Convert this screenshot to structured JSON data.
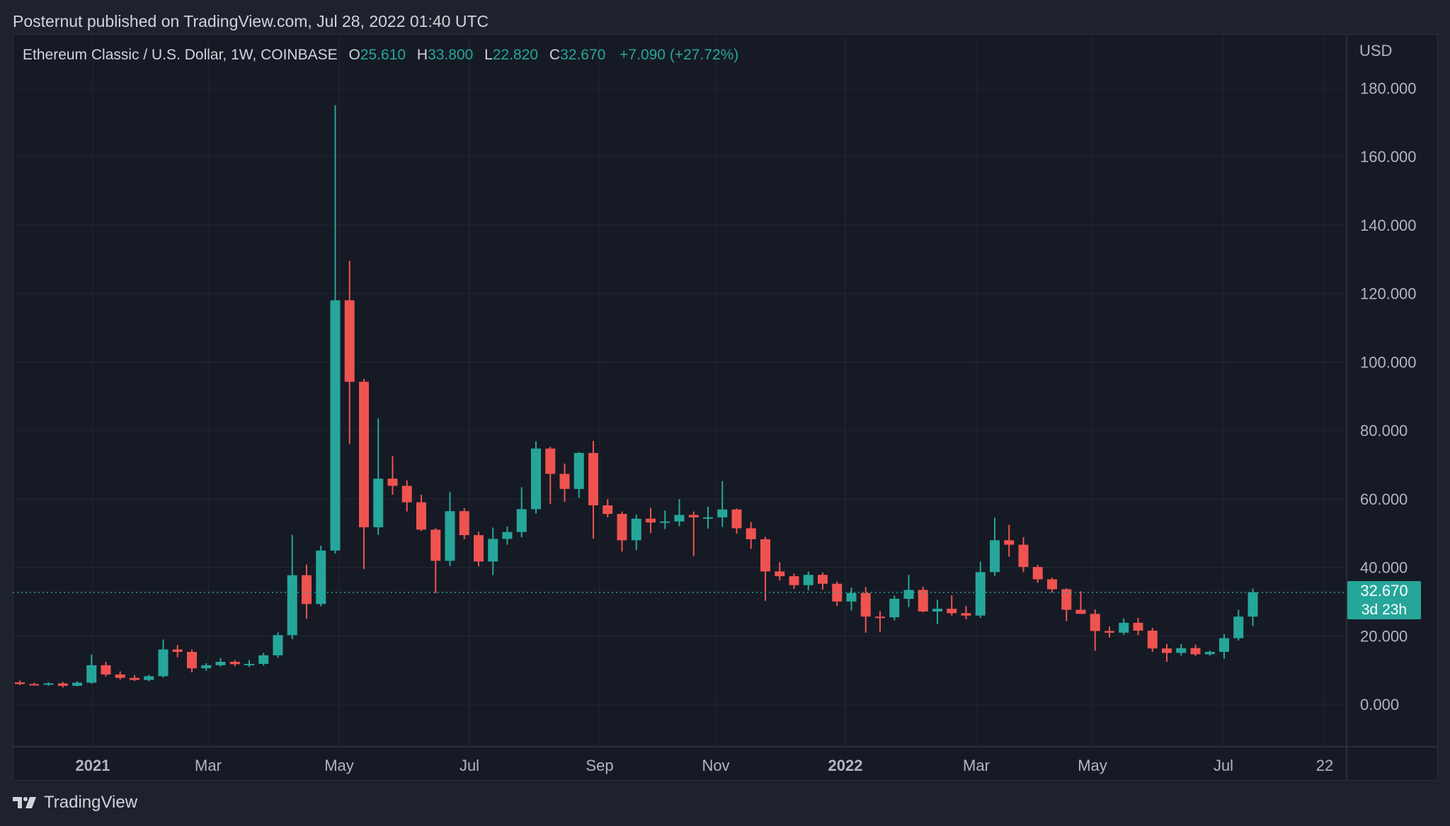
{
  "header": {
    "published": "Posternut published on TradingView.com, Jul 28, 2022 01:40 UTC"
  },
  "legend": {
    "symbol": "Ethereum Classic / U.S. Dollar, 1W, COINBASE",
    "o_label": "O",
    "o_value": "25.610",
    "h_label": "H",
    "h_value": "33.800",
    "l_label": "L",
    "l_value": "22.820",
    "c_label": "C",
    "c_value": "32.670",
    "change": "+7.090 (+27.72%)"
  },
  "price_axis": {
    "currency": "USD",
    "ticks": [
      "0.000",
      "20.000",
      "40.000",
      "60.000",
      "80.000",
      "100.000",
      "120.000",
      "140.000",
      "160.000",
      "180.000"
    ]
  },
  "last_price": {
    "value": "32.670",
    "countdown": "3d 23h"
  },
  "time_axis": {
    "ticks": [
      "2021",
      "Mar",
      "May",
      "Jul",
      "Sep",
      "Nov",
      "2022",
      "Mar",
      "May",
      "Jul",
      "22"
    ]
  },
  "footer": {
    "brand": "TradingView"
  },
  "colors": {
    "up": "#26a69a",
    "down": "#ef5350",
    "background": "#161a25",
    "grid": "#232733",
    "axis_text": "#b2b5be",
    "price_line": "#26a69a"
  },
  "chart_data": {
    "type": "candlestick",
    "title": "Ethereum Classic / U.S. Dollar, 1W, COINBASE",
    "ylabel": "USD",
    "ylim": [
      -12,
      190
    ],
    "grid": true,
    "candles": [
      {
        "o": 6.4,
        "h": 6.9,
        "l": 5.6,
        "c": 5.9
      },
      {
        "o": 5.9,
        "h": 6.3,
        "l": 5.5,
        "c": 5.8
      },
      {
        "o": 5.8,
        "h": 6.4,
        "l": 5.4,
        "c": 6.1
      },
      {
        "o": 6.1,
        "h": 6.5,
        "l": 4.9,
        "c": 5.4
      },
      {
        "o": 5.4,
        "h": 6.7,
        "l": 5.2,
        "c": 6.3
      },
      {
        "o": 6.3,
        "h": 14.5,
        "l": 6.0,
        "c": 11.4
      },
      {
        "o": 11.4,
        "h": 12.4,
        "l": 8.1,
        "c": 8.7
      },
      {
        "o": 8.7,
        "h": 9.6,
        "l": 7.2,
        "c": 7.7
      },
      {
        "o": 7.7,
        "h": 8.5,
        "l": 6.8,
        "c": 7.1
      },
      {
        "o": 7.1,
        "h": 8.6,
        "l": 6.7,
        "c": 8.2
      },
      {
        "o": 8.2,
        "h": 18.9,
        "l": 7.8,
        "c": 16.0
      },
      {
        "o": 16.0,
        "h": 17.3,
        "l": 13.7,
        "c": 15.3
      },
      {
        "o": 15.3,
        "h": 16.0,
        "l": 9.3,
        "c": 10.5
      },
      {
        "o": 10.5,
        "h": 12.0,
        "l": 9.8,
        "c": 11.4
      },
      {
        "o": 11.4,
        "h": 13.5,
        "l": 11.0,
        "c": 12.4
      },
      {
        "o": 12.4,
        "h": 12.9,
        "l": 11.1,
        "c": 11.7
      },
      {
        "o": 11.7,
        "h": 12.9,
        "l": 10.9,
        "c": 11.8
      },
      {
        "o": 11.8,
        "h": 15.0,
        "l": 11.3,
        "c": 14.3
      },
      {
        "o": 14.3,
        "h": 21.0,
        "l": 13.6,
        "c": 20.2
      },
      {
        "o": 20.2,
        "h": 49.5,
        "l": 19.0,
        "c": 37.7
      },
      {
        "o": 37.7,
        "h": 40.8,
        "l": 25.0,
        "c": 29.3
      },
      {
        "o": 29.3,
        "h": 46.3,
        "l": 28.6,
        "c": 44.9
      },
      {
        "o": 44.9,
        "h": 175.0,
        "l": 44.0,
        "c": 118.0
      },
      {
        "o": 118.0,
        "h": 129.5,
        "l": 76.0,
        "c": 94.2
      },
      {
        "o": 94.2,
        "h": 95.0,
        "l": 39.5,
        "c": 51.7
      },
      {
        "o": 51.7,
        "h": 83.5,
        "l": 49.5,
        "c": 65.9
      },
      {
        "o": 65.9,
        "h": 72.5,
        "l": 61.2,
        "c": 63.8
      },
      {
        "o": 63.8,
        "h": 65.4,
        "l": 56.3,
        "c": 59.0
      },
      {
        "o": 59.0,
        "h": 61.2,
        "l": 50.6,
        "c": 51.0
      },
      {
        "o": 51.0,
        "h": 51.4,
        "l": 32.4,
        "c": 41.9
      },
      {
        "o": 41.9,
        "h": 62.0,
        "l": 40.4,
        "c": 56.4
      },
      {
        "o": 56.4,
        "h": 57.3,
        "l": 48.2,
        "c": 49.4
      },
      {
        "o": 49.4,
        "h": 50.4,
        "l": 40.3,
        "c": 41.7
      },
      {
        "o": 41.7,
        "h": 51.6,
        "l": 37.7,
        "c": 48.3
      },
      {
        "o": 48.3,
        "h": 51.9,
        "l": 46.6,
        "c": 50.3
      },
      {
        "o": 50.3,
        "h": 63.4,
        "l": 48.8,
        "c": 57.0
      },
      {
        "o": 57.0,
        "h": 76.8,
        "l": 55.7,
        "c": 74.7
      },
      {
        "o": 74.7,
        "h": 75.2,
        "l": 58.5,
        "c": 67.3
      },
      {
        "o": 67.3,
        "h": 70.3,
        "l": 59.1,
        "c": 62.9
      },
      {
        "o": 62.9,
        "h": 73.7,
        "l": 60.3,
        "c": 73.4
      },
      {
        "o": 73.4,
        "h": 76.9,
        "l": 48.4,
        "c": 58.1
      },
      {
        "o": 58.1,
        "h": 59.9,
        "l": 54.6,
        "c": 55.6
      },
      {
        "o": 55.6,
        "h": 56.3,
        "l": 44.6,
        "c": 47.9
      },
      {
        "o": 47.9,
        "h": 55.4,
        "l": 45.0,
        "c": 54.2
      },
      {
        "o": 54.2,
        "h": 57.4,
        "l": 50.0,
        "c": 53.1
      },
      {
        "o": 53.1,
        "h": 56.6,
        "l": 51.2,
        "c": 53.4
      },
      {
        "o": 53.4,
        "h": 59.9,
        "l": 52.0,
        "c": 55.3
      },
      {
        "o": 55.3,
        "h": 56.3,
        "l": 43.3,
        "c": 54.6
      },
      {
        "o": 54.6,
        "h": 57.7,
        "l": 51.3,
        "c": 54.6
      },
      {
        "o": 54.6,
        "h": 65.2,
        "l": 51.8,
        "c": 56.9
      },
      {
        "o": 56.9,
        "h": 57.2,
        "l": 49.8,
        "c": 51.4
      },
      {
        "o": 51.4,
        "h": 53.2,
        "l": 45.4,
        "c": 48.2
      },
      {
        "o": 48.2,
        "h": 48.9,
        "l": 30.2,
        "c": 38.8
      },
      {
        "o": 38.8,
        "h": 41.5,
        "l": 36.2,
        "c": 37.4
      },
      {
        "o": 37.4,
        "h": 38.2,
        "l": 33.7,
        "c": 34.8
      },
      {
        "o": 34.8,
        "h": 38.8,
        "l": 33.3,
        "c": 37.8
      },
      {
        "o": 37.8,
        "h": 38.5,
        "l": 33.5,
        "c": 35.2
      },
      {
        "o": 35.2,
        "h": 35.9,
        "l": 28.7,
        "c": 30.0
      },
      {
        "o": 30.0,
        "h": 34.1,
        "l": 27.4,
        "c": 32.5
      },
      {
        "o": 32.5,
        "h": 34.2,
        "l": 20.9,
        "c": 25.6
      },
      {
        "o": 25.6,
        "h": 27.2,
        "l": 21.2,
        "c": 25.4
      },
      {
        "o": 25.4,
        "h": 31.7,
        "l": 24.5,
        "c": 30.8
      },
      {
        "o": 30.8,
        "h": 37.8,
        "l": 28.4,
        "c": 33.4
      },
      {
        "o": 33.4,
        "h": 34.3,
        "l": 26.9,
        "c": 27.1
      },
      {
        "o": 27.1,
        "h": 30.5,
        "l": 23.4,
        "c": 27.9
      },
      {
        "o": 27.9,
        "h": 31.8,
        "l": 25.9,
        "c": 26.6
      },
      {
        "o": 26.6,
        "h": 28.7,
        "l": 24.8,
        "c": 25.9
      },
      {
        "o": 25.9,
        "h": 41.6,
        "l": 25.2,
        "c": 38.6
      },
      {
        "o": 38.6,
        "h": 54.5,
        "l": 37.5,
        "c": 47.9
      },
      {
        "o": 47.9,
        "h": 52.4,
        "l": 43.1,
        "c": 46.6
      },
      {
        "o": 46.6,
        "h": 48.8,
        "l": 38.6,
        "c": 40.1
      },
      {
        "o": 40.1,
        "h": 40.7,
        "l": 35.5,
        "c": 36.5
      },
      {
        "o": 36.5,
        "h": 37.0,
        "l": 32.6,
        "c": 33.6
      },
      {
        "o": 33.6,
        "h": 33.9,
        "l": 24.3,
        "c": 27.6
      },
      {
        "o": 27.6,
        "h": 33.0,
        "l": 26.5,
        "c": 26.4
      },
      {
        "o": 26.4,
        "h": 27.7,
        "l": 15.6,
        "c": 21.4
      },
      {
        "o": 21.4,
        "h": 22.7,
        "l": 19.5,
        "c": 20.9
      },
      {
        "o": 20.9,
        "h": 25.1,
        "l": 20.3,
        "c": 23.8
      },
      {
        "o": 23.8,
        "h": 25.2,
        "l": 20.2,
        "c": 21.5
      },
      {
        "o": 21.5,
        "h": 22.3,
        "l": 15.3,
        "c": 16.3
      },
      {
        "o": 16.3,
        "h": 17.6,
        "l": 12.4,
        "c": 15.0
      },
      {
        "o": 15.0,
        "h": 17.6,
        "l": 14.2,
        "c": 16.4
      },
      {
        "o": 16.4,
        "h": 17.4,
        "l": 14.1,
        "c": 14.6
      },
      {
        "o": 14.6,
        "h": 15.7,
        "l": 14.2,
        "c": 15.3
      },
      {
        "o": 15.3,
        "h": 20.5,
        "l": 13.3,
        "c": 19.3
      },
      {
        "o": 19.3,
        "h": 27.6,
        "l": 18.6,
        "c": 25.6
      },
      {
        "o": 25.6,
        "h": 33.8,
        "l": 22.8,
        "c": 32.7
      }
    ]
  }
}
